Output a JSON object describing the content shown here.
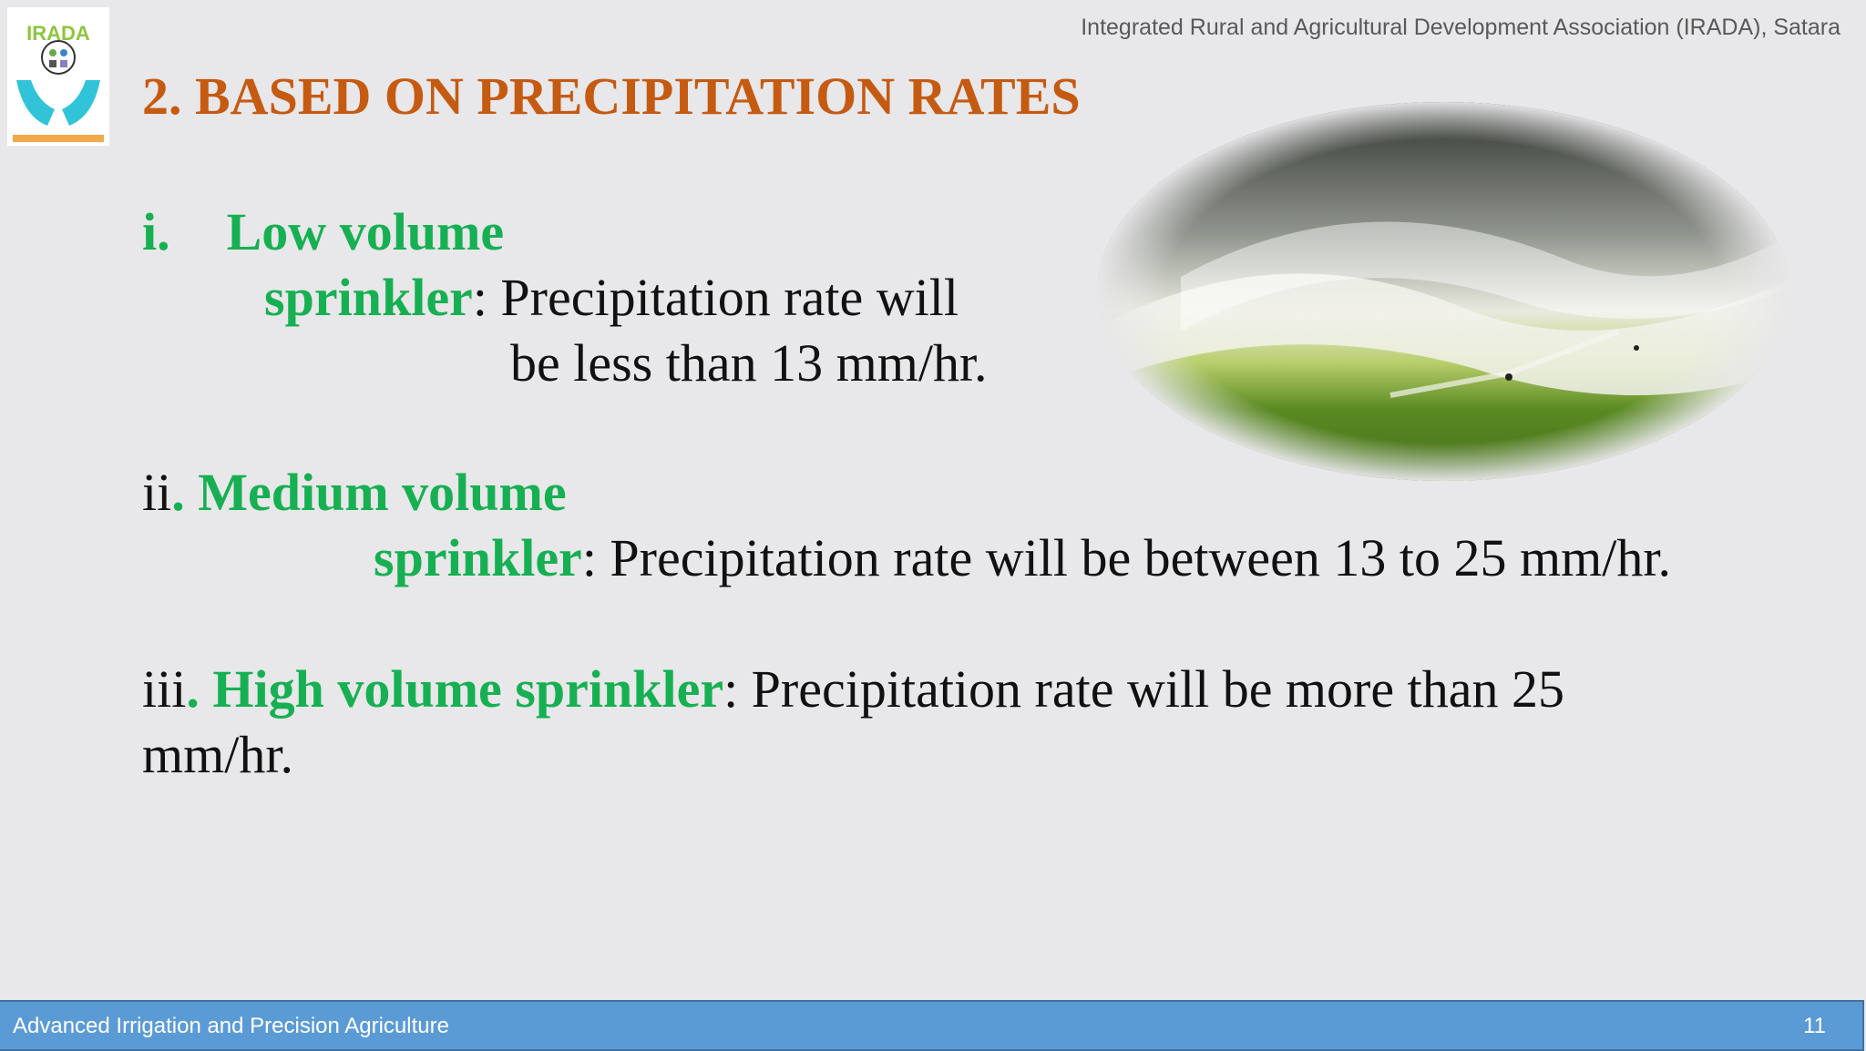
{
  "header": {
    "organization": "Integrated Rural and Agricultural Development Association (IRADA), Satara",
    "logo_text": "IRADA"
  },
  "slide": {
    "title": "2. BASED ON PRECIPITATION RATES",
    "items": [
      {
        "number": "i.",
        "term_part1": "Low volume",
        "term_part2": "sprinkler",
        "desc_part1": ": Precipitation rate will",
        "desc_part2": "be less than 13 mm/hr."
      },
      {
        "number": "ii",
        "term_part1": ". Medium volume",
        "term_part2": "sprinkler",
        "desc": ": Precipitation rate will be between 13 to  25 mm/hr."
      },
      {
        "number": "iii",
        "term": ". High volume sprinkler",
        "desc_part1": ": Precipitation rate will be more than 25",
        "desc_part2": "mm/hr."
      }
    ],
    "image": {
      "icon": "sprinkler-photo",
      "colors": {
        "grass": "#5a8a22",
        "spray": "#f2f2ec",
        "background": "#2b2f2a"
      }
    }
  },
  "footer": {
    "text": "Advanced Irrigation and Precision Agriculture",
    "page_number": "11"
  },
  "colors": {
    "title": "#c55a11",
    "term": "#16b052",
    "body_text": "#111111",
    "footer_bg": "#5b9bd5",
    "background": "#e8e7e9"
  }
}
